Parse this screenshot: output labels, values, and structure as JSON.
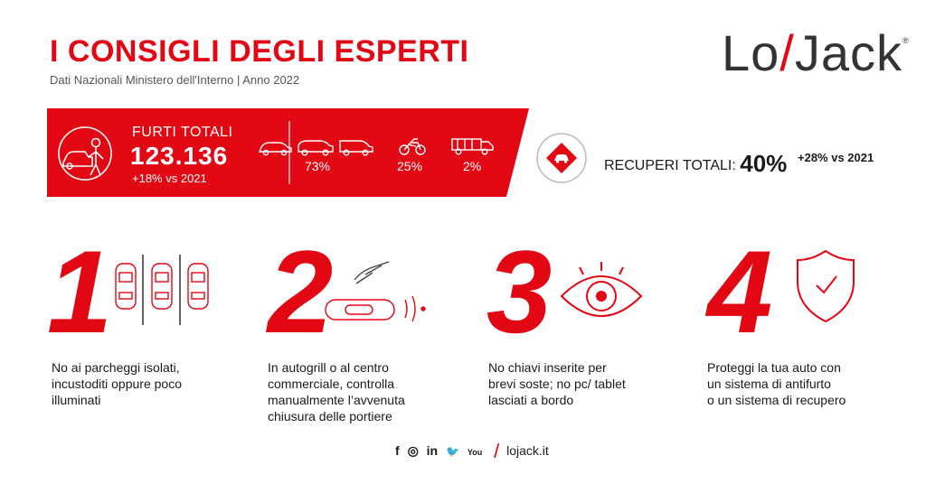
{
  "header": {
    "title": "I CONSIGLI DEGLI ESPERTI",
    "subtitle": "Dati Nazionali Ministero dell'Interno | Anno 2022",
    "logo": {
      "part1": "Lo",
      "slash": "/",
      "part2": "Jack",
      "reg": "®"
    }
  },
  "stats": {
    "furti_label": "FURTI TOTALI",
    "furti_total": "123.136",
    "furti_delta": "+18% vs 2021",
    "categories": [
      {
        "icon": "cars-icon",
        "value": "73%"
      },
      {
        "icon": "motorcycle-icon",
        "value": "25%"
      },
      {
        "icon": "truck-icon",
        "value": "2%"
      }
    ],
    "recuperi_label": "RECUPERI TOTALI:",
    "recuperi_value": "40%",
    "recuperi_delta": "+28% vs 2021"
  },
  "tips": [
    {
      "number": "1",
      "icon": "parking-cars-icon",
      "lines": [
        "No ai parcheggi isolati,",
        "incustoditi oppure poco",
        "illuminati"
      ]
    },
    {
      "number": "2",
      "icon": "car-key-remote-icon",
      "lines": [
        "In autogrill o al centro",
        "commerciale, controlla",
        "manualmente l’avvenuta",
        "chiusura delle portiere"
      ]
    },
    {
      "number": "3",
      "icon": "eye-icon",
      "lines": [
        "No chiavi inserite per",
        "brevi soste; no pc/ tablet",
        "lasciati a bordo"
      ]
    },
    {
      "number": "4",
      "icon": "shield-check-icon",
      "lines": [
        "Proteggi la tua auto con",
        "un sistema di antifurto",
        "o un sistema di recupero"
      ]
    }
  ],
  "footer": {
    "social": [
      "f",
      "◎",
      "in",
      "🐦",
      "You"
    ],
    "website": "lojack.it"
  },
  "colors": {
    "accent": "#e30613",
    "text": "#1a1a1a",
    "background": "#ffffff"
  }
}
